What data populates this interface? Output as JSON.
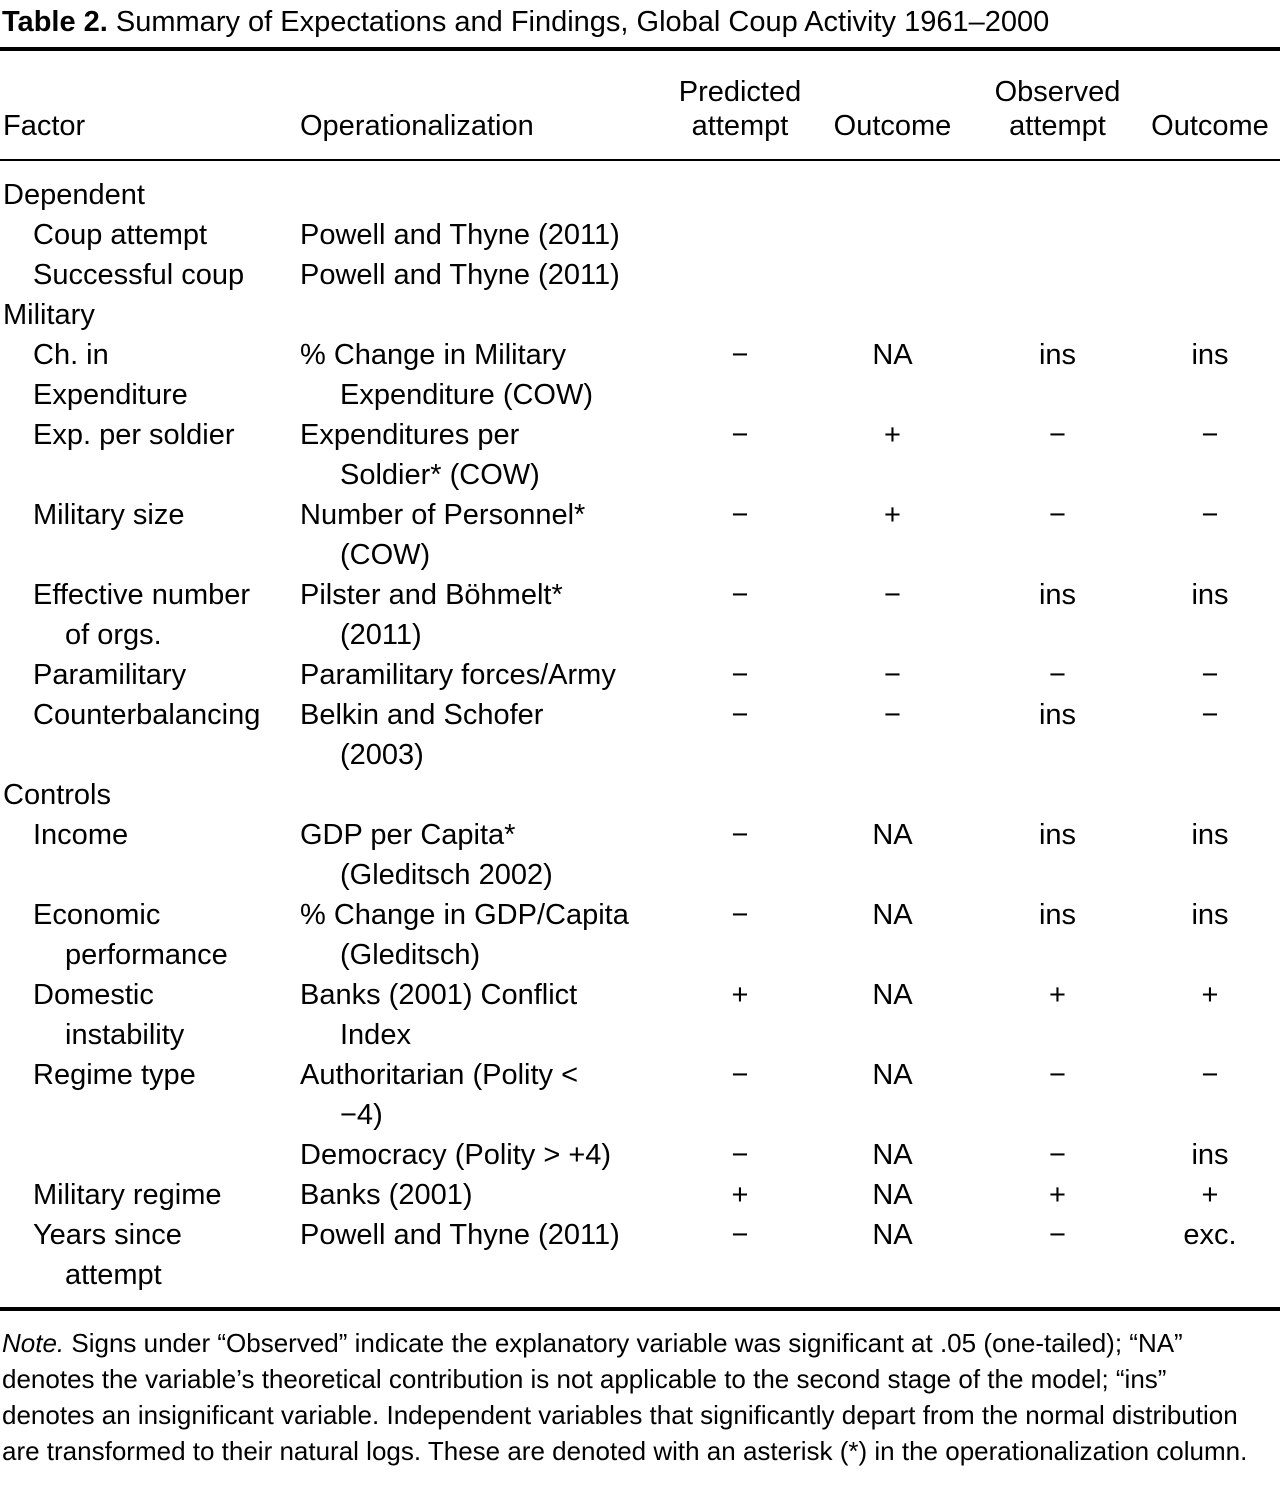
{
  "title": {
    "label": "Table 2.",
    "text": " Summary of Expectations and Findings, Global Coup Activity 1961–2000"
  },
  "table": {
    "headers": {
      "factor": "Factor",
      "operationalization": "Operationalization",
      "predicted": [
        "Predicted",
        "attempt"
      ],
      "outcome1": "Outcome",
      "observed": [
        "Observed",
        "attempt"
      ],
      "outcome2": "Outcome"
    },
    "rows": [
      {
        "section": true,
        "factor": [
          "Dependent"
        ],
        "op": [],
        "signs": [
          "",
          "",
          "",
          ""
        ]
      },
      {
        "section": false,
        "factor": [
          "Coup attempt"
        ],
        "factor_hang": false,
        "op": [
          "Powell and Thyne (2011)"
        ],
        "signs": [
          "",
          "",
          "",
          ""
        ]
      },
      {
        "section": false,
        "factor": [
          "Successful coup"
        ],
        "factor_hang": false,
        "op": [
          "Powell and Thyne (2011)"
        ],
        "signs": [
          "",
          "",
          "",
          ""
        ]
      },
      {
        "section": true,
        "factor": [
          "Military"
        ],
        "op": [],
        "signs": [
          "",
          "",
          "",
          ""
        ]
      },
      {
        "section": false,
        "factor": [
          "Ch. in",
          "Expenditure"
        ],
        "factor_hang": false,
        "op": [
          "% Change in Military",
          "Expenditure (COW)"
        ],
        "signs": [
          "−",
          "NA",
          "ins",
          "ins"
        ]
      },
      {
        "section": false,
        "factor": [
          "Exp. per soldier"
        ],
        "factor_hang": false,
        "op": [
          "Expenditures per",
          "Soldier* (COW)"
        ],
        "signs": [
          "−",
          "+",
          "−",
          "−"
        ]
      },
      {
        "section": false,
        "factor": [
          "Military size"
        ],
        "factor_hang": false,
        "op": [
          "Number of Personnel*",
          "(COW)"
        ],
        "signs": [
          "−",
          "+",
          "−",
          "−"
        ]
      },
      {
        "section": false,
        "factor": [
          "Effective number",
          "of orgs."
        ],
        "factor_hang": true,
        "op": [
          "Pilster and Böhmelt*",
          "(2011)"
        ],
        "signs": [
          "−",
          "−",
          "ins",
          "ins"
        ]
      },
      {
        "section": false,
        "factor": [
          "Paramilitary"
        ],
        "factor_hang": false,
        "op": [
          "Paramilitary forces/Army"
        ],
        "signs": [
          "−",
          "−",
          "−",
          "−"
        ]
      },
      {
        "section": false,
        "factor": [
          "Counterbalancing"
        ],
        "factor_hang": false,
        "op": [
          "Belkin and Schofer",
          "(2003)"
        ],
        "signs": [
          "−",
          "−",
          "ins",
          "−"
        ]
      },
      {
        "section": true,
        "factor": [
          "Controls"
        ],
        "op": [],
        "signs": [
          "",
          "",
          "",
          ""
        ]
      },
      {
        "section": false,
        "factor": [
          "Income"
        ],
        "factor_hang": false,
        "op": [
          "GDP per Capita*",
          "(Gleditsch 2002)"
        ],
        "signs": [
          "−",
          "NA",
          "ins",
          "ins"
        ]
      },
      {
        "section": false,
        "factor": [
          "Economic",
          "performance"
        ],
        "factor_hang": true,
        "op": [
          "% Change in GDP/Capita",
          "(Gleditsch)"
        ],
        "signs": [
          "−",
          "NA",
          "ins",
          "ins"
        ]
      },
      {
        "section": false,
        "factor": [
          "Domestic",
          "instability"
        ],
        "factor_hang": true,
        "op": [
          "Banks (2001) Conflict",
          "Index"
        ],
        "signs": [
          "+",
          "NA",
          "+",
          "+"
        ]
      },
      {
        "section": false,
        "factor": [
          "Regime type"
        ],
        "factor_hang": false,
        "op": [
          "Authoritarian (Polity <",
          "−4)"
        ],
        "signs": [
          "−",
          "NA",
          "−",
          "−"
        ]
      },
      {
        "section": false,
        "factor": [],
        "factor_hang": false,
        "op": [
          "Democracy (Polity > +4)"
        ],
        "signs": [
          "−",
          "NA",
          "−",
          "ins"
        ]
      },
      {
        "section": false,
        "factor": [
          "Military regime"
        ],
        "factor_hang": false,
        "op": [
          "Banks (2001)"
        ],
        "signs": [
          "+",
          "NA",
          "+",
          "+"
        ]
      },
      {
        "section": false,
        "factor": [
          "Years since",
          "attempt"
        ],
        "factor_hang": true,
        "op": [
          "Powell and Thyne (2011)"
        ],
        "signs": [
          "−",
          "NA",
          "−",
          "exc."
        ]
      }
    ]
  },
  "note": {
    "label": "Note.",
    "text": " Signs under “Observed” indicate the explanatory variable was significant at .05 (one-tailed); “NA” denotes the variable’s theoretical contribution is not applicable to the second stage of the model; “ins” denotes an insignificant variable. Independent variables that significantly depart from the normal distribution are transformed to their natural logs. These are denoted with an asterisk (*) in the operationalization column."
  }
}
